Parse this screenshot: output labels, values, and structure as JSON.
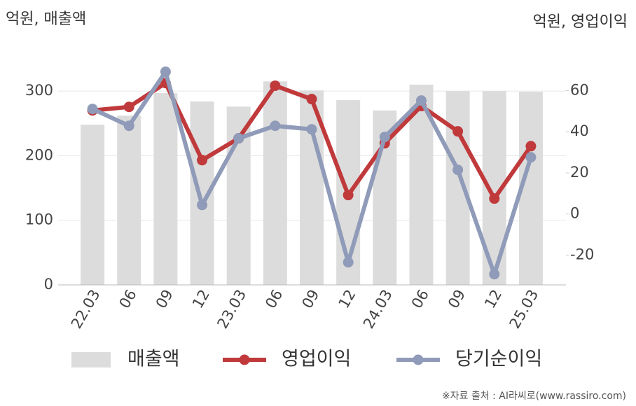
{
  "chart_data": {
    "type": "bar-line",
    "y_axis_title": "억원, 매출액",
    "y2_axis_title": "억원, 영업이익",
    "source": "※자료 출처 : AI라씨로(www.rassiro.com)",
    "categories": [
      "22.03",
      "06",
      "09",
      "12",
      "23.03",
      "06",
      "09",
      "12",
      "24.03",
      "06",
      "09",
      "12",
      "25.03"
    ],
    "series": [
      {
        "name": "매출액",
        "kind": "bar",
        "color": "#dcdcdc",
        "values": [
          248,
          262,
          297,
          284,
          276,
          315,
          301,
          286,
          270,
          310,
          300,
          300,
          299
        ]
      },
      {
        "name": "영업이익",
        "kind": "line",
        "axis": "y2",
        "color": "#c0393b",
        "values": [
          50.4,
          52.1,
          63.7,
          26.2,
          36.8,
          62.4,
          55.9,
          9.2,
          34.4,
          52.5,
          40.2,
          7.5,
          33.0
        ]
      },
      {
        "name": "당기순이익",
        "kind": "line",
        "axis": "y2",
        "color": "#8f9bb8",
        "values": [
          51.1,
          42.9,
          69.2,
          4.4,
          36.8,
          42.9,
          41.2,
          -23.5,
          37.5,
          55.2,
          21.5,
          -29.3,
          27.6
        ]
      }
    ],
    "ylim": [
      0,
      350
    ],
    "yticks": [
      0,
      100,
      200,
      300
    ],
    "y2lim": [
      -34.5,
      75.5
    ],
    "y2ticks": [
      -20,
      0,
      20,
      40,
      60
    ],
    "grid": true
  }
}
